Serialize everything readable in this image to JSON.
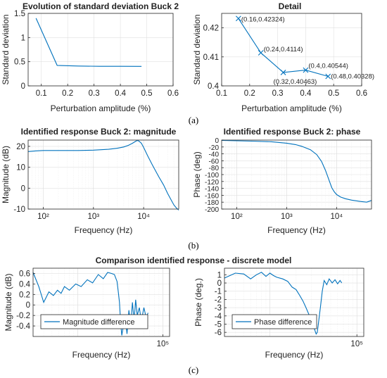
{
  "captions": [
    "(a)",
    "(b)",
    "(c)"
  ],
  "chart_data": [
    {
      "type": "line",
      "title": "Evolution of standard deviation Buck 2",
      "xlabel": "Perturbation amplitude (%)",
      "ylabel": "Standard deviation",
      "xlim": [
        0.05,
        0.6
      ],
      "ylim": [
        0,
        1.5
      ],
      "xticks": [
        0.1,
        0.2,
        0.3,
        0.4,
        0.5,
        0.6
      ],
      "xticklabels": [
        "0.1",
        "0.2",
        "0.3",
        "0.4",
        "0.5",
        "0.6"
      ],
      "yticks": [
        0,
        0.5,
        1,
        1.5
      ],
      "yticklabels": [
        "0",
        "0.5",
        "1",
        "1.5"
      ],
      "x": [
        0.08,
        0.16,
        0.24,
        0.32,
        0.4,
        0.48
      ],
      "y": [
        1.4,
        0.42324,
        0.4114,
        0.40463,
        0.40544,
        0.40328
      ],
      "grid": true,
      "color": "#0072BD"
    },
    {
      "type": "line",
      "title": "Detail",
      "xlabel": "Perturbation amplitude (%)",
      "ylabel": "Standard deviation",
      "xlim": [
        0.1,
        0.6
      ],
      "ylim": [
        0.4,
        0.425
      ],
      "xticks": [
        0.1,
        0.2,
        0.3,
        0.4,
        0.5,
        0.6
      ],
      "xticklabels": [
        "0.1",
        "0.2",
        "0.3",
        "0.4",
        "0.5",
        "0.6"
      ],
      "yticks": [
        0.4,
        0.41,
        0.42
      ],
      "yticklabels": [
        "0.4",
        "0.41",
        "0.42"
      ],
      "x": [
        0.16,
        0.24,
        0.32,
        0.4,
        0.48
      ],
      "y": [
        0.42324,
        0.4114,
        0.40463,
        0.40544,
        0.40328
      ],
      "markers": "x",
      "annotations": [
        "(0.16,0.42324)",
        "(0.24,0.4114)",
        "(0.32,0.40463)",
        "(0.4,0.40544)",
        "(0.48,0.40328)"
      ],
      "grid": true,
      "color": "#0072BD"
    },
    {
      "type": "line",
      "title": "Identified response Buck 2: magnitude",
      "xlabel": "Frequency (Hz)",
      "ylabel": "Magnitude (dB)",
      "xscale": "log",
      "xlim": [
        50,
        50000
      ],
      "ylim": [
        -10,
        23
      ],
      "xticks": [
        100,
        1000,
        10000
      ],
      "xticklabels": [
        "10²",
        "10³",
        "10⁴"
      ],
      "yticks": [
        -10,
        0,
        10,
        20
      ],
      "yticklabels": [
        "-10",
        "0",
        "10",
        "20"
      ],
      "x": [
        50,
        70,
        100,
        200,
        500,
        1000,
        2000,
        3000,
        4000,
        5000,
        6000,
        7000,
        7500,
        8000,
        9000,
        10000,
        12000,
        15000,
        20000,
        25000,
        30000,
        35000,
        40000,
        45000,
        50000
      ],
      "y": [
        17.5,
        17.8,
        18,
        18,
        18,
        18.2,
        18.6,
        19.1,
        19.7,
        20.5,
        21.5,
        22.5,
        22.8,
        22.6,
        21.5,
        19.5,
        15.5,
        11,
        5.5,
        1.5,
        -2.5,
        -5.5,
        -8,
        -9.5,
        -10.5
      ],
      "grid": true,
      "color": "#0072BD"
    },
    {
      "type": "line",
      "title": "Identified response Buck 2: phase",
      "xlabel": "Frequency (Hz)",
      "ylabel": "Phase (deg)",
      "xscale": "log",
      "xlim": [
        50,
        50000
      ],
      "ylim": [
        -200,
        0
      ],
      "xticks": [
        100,
        1000,
        10000
      ],
      "xticklabels": [
        "10²",
        "10³",
        "10⁴"
      ],
      "yticks": [
        -200,
        -180,
        -160,
        -140,
        -120,
        -100,
        -80,
        -60,
        -40,
        -20,
        0
      ],
      "yticklabels": [
        "-200",
        "-180",
        "-160",
        "-140",
        "-120",
        "-100",
        "-80",
        "-60",
        "-40",
        "-20",
        "0"
      ],
      "x": [
        50,
        100,
        200,
        500,
        1000,
        1500,
        2000,
        3000,
        4000,
        5000,
        6000,
        7000,
        8000,
        9000,
        10000,
        12000,
        15000,
        20000,
        30000,
        40000,
        50000
      ],
      "y": [
        -1,
        -2,
        -3,
        -5,
        -9,
        -13,
        -18,
        -28,
        -42,
        -62,
        -88,
        -115,
        -138,
        -150,
        -158,
        -165,
        -170,
        -174,
        -178,
        -180,
        -175
      ],
      "grid": true,
      "color": "#0072BD"
    },
    {
      "type": "line",
      "title": "Comparison identified response - discrete model",
      "xlabel": "Frequency (Hz)",
      "ylabel": "Magnitude (dB)",
      "xscale": "log",
      "xlim": [
        3000,
        120000
      ],
      "ylim": [
        -0.6,
        0.7
      ],
      "xticks": [
        100000
      ],
      "xticklabels": [
        "10⁵"
      ],
      "yticks": [
        -0.4,
        -0.2,
        0,
        0.2,
        0.4,
        0.6
      ],
      "yticklabels": [
        "-0.4",
        "-0.2",
        "0",
        "0.2",
        "0.4",
        "0.6"
      ],
      "series": [
        {
          "name": "Magnitude difference",
          "x": [
            3000,
            3500,
            4000,
            4600,
            5200,
            5800,
            6400,
            7000,
            8000,
            9500,
            11000,
            13000,
            15000,
            17500,
            20000,
            22500,
            25000,
            27000,
            29000,
            30000,
            31000,
            32000,
            33000,
            34000,
            35000,
            36000,
            38000,
            40000,
            42000,
            44000,
            46000,
            48000,
            50000,
            53000,
            56000,
            60000,
            64000,
            67000
          ],
          "y": [
            0.62,
            0.35,
            0.05,
            0.25,
            0.18,
            0.28,
            0.22,
            0.35,
            0.28,
            0.4,
            0.35,
            0.48,
            0.42,
            0.58,
            0.5,
            0.62,
            0.6,
            0.58,
            0.45,
            0.25,
            0.05,
            -0.35,
            -0.58,
            -0.45,
            -0.25,
            -0.2,
            -0.55,
            -0.1,
            -0.4,
            0.05,
            -0.3,
            0.1,
            -0.2,
            -0.05,
            -0.3,
            -0.05,
            -0.25,
            -0.15
          ]
        }
      ],
      "legend": "bottom-left",
      "grid": true,
      "color": "#0072BD"
    },
    {
      "type": "line",
      "title": "",
      "xlabel": "Frequency (Hz)",
      "ylabel": "Phase (deg.)",
      "xscale": "log",
      "xlim": [
        3000,
        120000
      ],
      "ylim": [
        -6.5,
        1.8
      ],
      "xticks": [
        100000
      ],
      "xticklabels": [
        "10⁵"
      ],
      "yticks": [
        -6,
        -5,
        -4,
        -3,
        -2,
        -1,
        0,
        1
      ],
      "yticklabels": [
        "-6",
        "-5",
        "-4",
        "-3",
        "-2",
        "-1",
        "0",
        "1"
      ],
      "series": [
        {
          "name": "Phase difference",
          "x": [
            3000,
            4000,
            5000,
            6000,
            7000,
            8000,
            9000,
            10000,
            11000,
            12000,
            14000,
            16000,
            18000,
            20000,
            22000,
            24000,
            26000,
            28000,
            30000,
            32000,
            34000,
            35000,
            36000,
            38000,
            40000,
            42000,
            45000,
            48000,
            52000,
            56000,
            60000,
            64000,
            67000
          ],
          "y": [
            0.6,
            1.2,
            1.1,
            0.5,
            1.0,
            1.3,
            0.8,
            1.2,
            0.9,
            0.7,
            0.5,
            0.2,
            -0.5,
            -0.8,
            -1.5,
            -2.2,
            -3.0,
            -3.8,
            -4.6,
            -5.4,
            -6.2,
            -6.0,
            -5.0,
            -3.0,
            -1.0,
            0.3,
            -0.2,
            0.5,
            0.0,
            0.4,
            -0.1,
            0.3,
            0.0
          ]
        }
      ],
      "legend": "bottom-left",
      "grid": true,
      "color": "#0072BD"
    }
  ]
}
